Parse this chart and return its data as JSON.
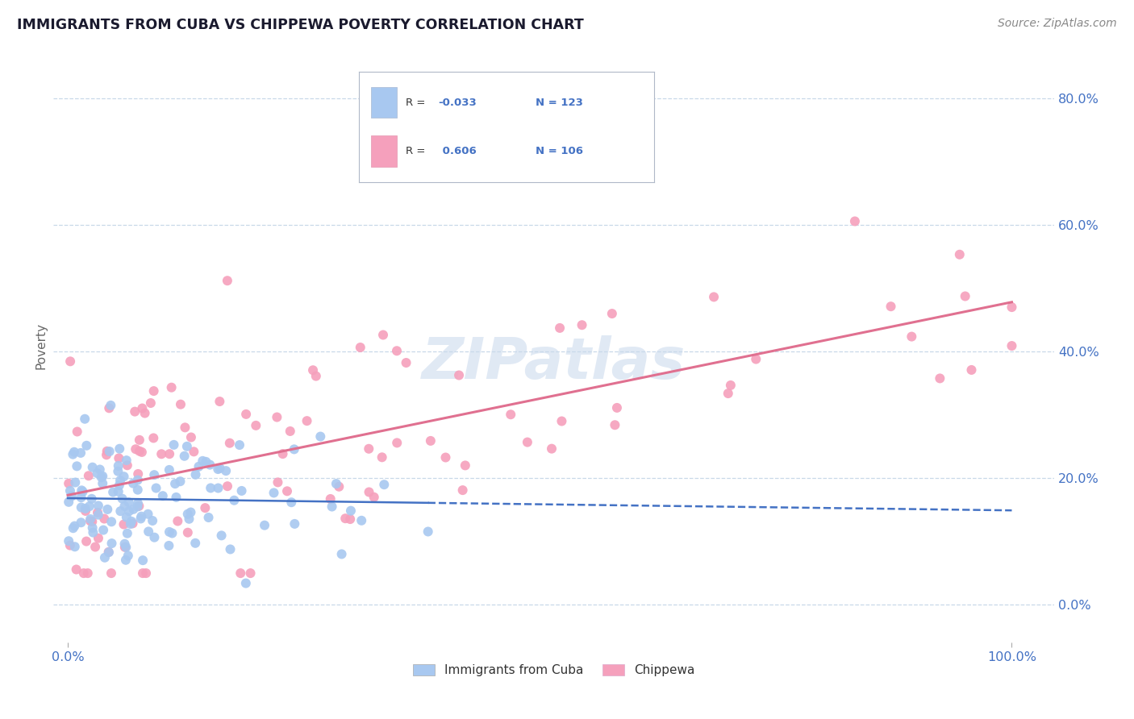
{
  "title": "IMMIGRANTS FROM CUBA VS CHIPPEWA POVERTY CORRELATION CHART",
  "source_text": "Source: ZipAtlas.com",
  "ylabel": "Poverty",
  "r_blue": -0.033,
  "n_blue": 123,
  "r_pink": 0.606,
  "n_pink": 106,
  "blue_color": "#a8c8f0",
  "pink_color": "#f5a0bc",
  "blue_line_color": "#4472c4",
  "pink_line_color": "#e07090",
  "title_color": "#1a1a2e",
  "watermark_color": "#c8d8ec",
  "background_color": "#ffffff",
  "grid_color": "#c8d8e8",
  "source_color": "#888888",
  "axis_label_color": "#4472c4",
  "legend_labels": [
    "Immigrants from Cuba",
    "Chippewa"
  ]
}
